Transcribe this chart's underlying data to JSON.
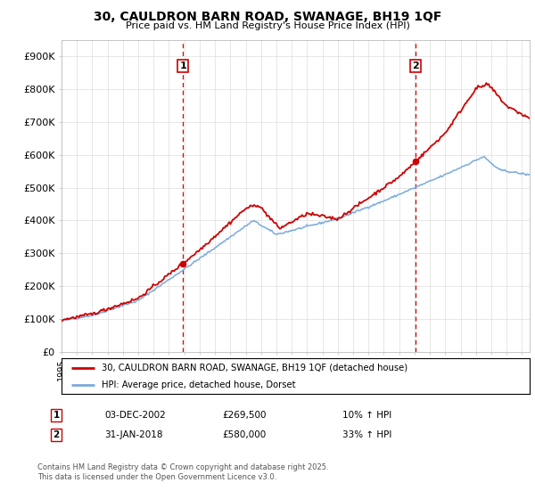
{
  "title": "30, CAULDRON BARN ROAD, SWANAGE, BH19 1QF",
  "subtitle": "Price paid vs. HM Land Registry's House Price Index (HPI)",
  "legend_label_red": "30, CAULDRON BARN ROAD, SWANAGE, BH19 1QF (detached house)",
  "legend_label_blue": "HPI: Average price, detached house, Dorset",
  "footer": "Contains HM Land Registry data © Crown copyright and database right 2025.\nThis data is licensed under the Open Government Licence v3.0.",
  "sale1_date": "03-DEC-2002",
  "sale1_price": "£269,500",
  "sale1_hpi": "10% ↑ HPI",
  "sale2_date": "31-JAN-2018",
  "sale2_price": "£580,000",
  "sale2_hpi": "33% ↑ HPI",
  "red_color": "#cc0000",
  "blue_color": "#7aaadd",
  "vline_color": "#cc0000",
  "grid_color": "#dddddd",
  "background_color": "#ffffff",
  "ylim": [
    0,
    950000
  ],
  "yticks": [
    0,
    100000,
    200000,
    300000,
    400000,
    500000,
    600000,
    700000,
    800000,
    900000
  ],
  "ytick_labels": [
    "£0",
    "£100K",
    "£200K",
    "£300K",
    "£400K",
    "£500K",
    "£600K",
    "£700K",
    "£800K",
    "£900K"
  ],
  "sale1_x": 2002.92,
  "sale1_y": 269500,
  "sale2_x": 2018.08,
  "sale2_y": 580000,
  "xmin": 1995,
  "xmax": 2025.5
}
